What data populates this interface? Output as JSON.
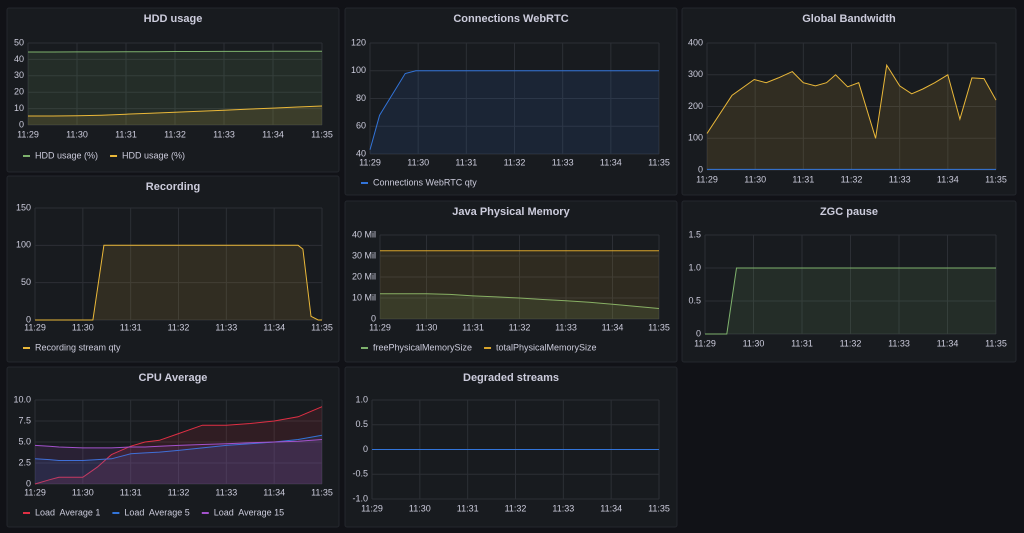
{
  "chart_data": [
    {
      "type": "line",
      "title": "HDD usage",
      "legend": "bottom-left",
      "x": [
        689,
        689.5,
        690,
        690.5,
        691,
        691.5,
        692,
        692.5,
        693,
        693.5,
        694,
        694.5,
        695
      ],
      "xlim": [
        689,
        695
      ],
      "xticks": [
        {
          "value": 689,
          "label": "11:29"
        },
        {
          "value": 690,
          "label": "11:30"
        },
        {
          "value": 691,
          "label": "11:31"
        },
        {
          "value": 692,
          "label": "11:32"
        },
        {
          "value": 693,
          "label": "11:33"
        },
        {
          "value": 694,
          "label": "11:34"
        },
        {
          "value": 695,
          "label": "11:35"
        }
      ],
      "ylim": [
        0,
        50
      ],
      "yticks": [
        0,
        10,
        20,
        30,
        40,
        50
      ],
      "grid": true,
      "series": [
        {
          "name": "HDD usage (%)",
          "color": "#7eb26d",
          "values": [
            44.5,
            44.5,
            44.6,
            44.6,
            44.7,
            44.7,
            44.8,
            44.8,
            44.9,
            44.9,
            45,
            45,
            45
          ]
        },
        {
          "name": "HDD usage (%)",
          "color": "#eab839",
          "values": [
            5.5,
            5.5,
            5.6,
            6,
            6.6,
            7.2,
            7.8,
            8.4,
            9,
            9.7,
            10.3,
            11,
            11.6
          ]
        }
      ]
    },
    {
      "type": "line",
      "title": "Connections WebRTC",
      "legend": "bottom-left",
      "x": [
        689,
        689.2,
        689.73,
        689.95,
        690.5,
        691,
        691.5,
        692,
        692.5,
        693,
        693.5,
        694,
        694.5,
        695
      ],
      "xlim": [
        689,
        695
      ],
      "xticks": [
        {
          "value": 689,
          "label": "11:29"
        },
        {
          "value": 690,
          "label": "11:30"
        },
        {
          "value": 691,
          "label": "11:31"
        },
        {
          "value": 692,
          "label": "11:32"
        },
        {
          "value": 693,
          "label": "11:33"
        },
        {
          "value": 694,
          "label": "11:34"
        },
        {
          "value": 695,
          "label": "11:35"
        }
      ],
      "ylim": [
        40,
        120
      ],
      "yticks": [
        40,
        60,
        80,
        100,
        120
      ],
      "grid": true,
      "series": [
        {
          "name": "Connections WebRTC qty",
          "color": "#3274d9",
          "values": [
            43,
            68,
            98,
            100,
            100,
            100,
            100,
            100,
            100,
            100,
            100,
            100,
            100,
            100
          ]
        }
      ]
    },
    {
      "type": "line",
      "title": "Global Bandwidth",
      "x": [
        689,
        689.52,
        689.98,
        690.23,
        690.48,
        690.77,
        691,
        691.25,
        691.48,
        691.67,
        691.92,
        692.15,
        692.5,
        692.73,
        693,
        693.25,
        693.48,
        693.73,
        694,
        694.25,
        694.5,
        694.75,
        695
      ],
      "xlim": [
        689,
        695
      ],
      "xticks": [
        {
          "value": 689,
          "label": "11:29"
        },
        {
          "value": 690,
          "label": "11:30"
        },
        {
          "value": 691,
          "label": "11:31"
        },
        {
          "value": 692,
          "label": "11:32"
        },
        {
          "value": 693,
          "label": "11:33"
        },
        {
          "value": 694,
          "label": "11:34"
        },
        {
          "value": 695,
          "label": "11:35"
        }
      ],
      "ylim": [
        0,
        400
      ],
      "yticks": [
        0,
        100,
        200,
        300,
        400
      ],
      "grid": true,
      "series": [
        {
          "color": "#eab839",
          "values": [
            115,
            235,
            285,
            275,
            290,
            310,
            275,
            265,
            275,
            300,
            262,
            275,
            100,
            330,
            265,
            240,
            255,
            275,
            300,
            160,
            290,
            288,
            220
          ]
        },
        {
          "color": "#3274d9",
          "values": [
            2,
            2,
            2,
            2,
            2,
            2,
            2,
            2,
            2,
            2,
            2,
            2,
            2,
            2,
            2,
            2,
            2,
            2,
            2,
            2,
            2,
            2,
            2
          ]
        }
      ]
    },
    {
      "type": "line",
      "title": "Recording",
      "legend": "bottom-left",
      "x": [
        689,
        690.21,
        690.44,
        694.5,
        694.6,
        694.77,
        694.92,
        695
      ],
      "xlim": [
        689,
        695
      ],
      "xticks": [
        {
          "value": 689,
          "label": "11:29"
        },
        {
          "value": 690,
          "label": "11:30"
        },
        {
          "value": 691,
          "label": "11:31"
        },
        {
          "value": 692,
          "label": "11:32"
        },
        {
          "value": 693,
          "label": "11:33"
        },
        {
          "value": 694,
          "label": "11:34"
        },
        {
          "value": 695,
          "label": "11:35"
        }
      ],
      "ylim": [
        0,
        150
      ],
      "yticks": [
        0,
        50,
        100,
        150
      ],
      "grid": true,
      "series": [
        {
          "name": "Recording stream qty",
          "color": "#eab839",
          "values": [
            0,
            0,
            100,
            100,
            95,
            5,
            0,
            0
          ]
        }
      ]
    },
    {
      "type": "line",
      "title": "Java Physical Memory",
      "legend": "bottom-left",
      "x": [
        689,
        689.5,
        690,
        690.5,
        691,
        691.5,
        692,
        692.5,
        693,
        693.5,
        694,
        694.5,
        695
      ],
      "xlim": [
        689,
        695
      ],
      "xticks": [
        {
          "value": 689,
          "label": "11:29"
        },
        {
          "value": 690,
          "label": "11:30"
        },
        {
          "value": 691,
          "label": "11:31"
        },
        {
          "value": 692,
          "label": "11:32"
        },
        {
          "value": 693,
          "label": "11:33"
        },
        {
          "value": 694,
          "label": "11:34"
        },
        {
          "value": 695,
          "label": "11:35"
        }
      ],
      "ylim": [
        0,
        40000000
      ],
      "yticks": [
        0,
        {
          "value": 10000000,
          "label": "10 Mil"
        },
        {
          "value": 20000000,
          "label": "20 Mil"
        },
        {
          "value": 30000000,
          "label": "30 Mil"
        },
        {
          "value": 40000000,
          "label": "40 Mil"
        }
      ],
      "grid": true,
      "series": [
        {
          "name": "freePhysicalMemorySize",
          "color": "#7eb26d",
          "values": [
            12000000,
            12000000,
            12000000,
            11700000,
            11000000,
            10500000,
            10000000,
            9300000,
            8700000,
            8000000,
            7000000,
            6000000,
            5000000
          ]
        },
        {
          "name": "totalPhysicalMemorySize",
          "color": "#d9a52b",
          "values": [
            32500000,
            32500000,
            32500000,
            32500000,
            32500000,
            32500000,
            32500000,
            32500000,
            32500000,
            32500000,
            32500000,
            32500000,
            32500000
          ]
        }
      ]
    },
    {
      "type": "line",
      "title": "ZGC pause",
      "x": [
        689,
        689.45,
        689.65,
        695
      ],
      "xlim": [
        689,
        695
      ],
      "xticks": [
        {
          "value": 689,
          "label": "11:29"
        },
        {
          "value": 690,
          "label": "11:30"
        },
        {
          "value": 691,
          "label": "11:31"
        },
        {
          "value": 692,
          "label": "11:32"
        },
        {
          "value": 693,
          "label": "11:33"
        },
        {
          "value": 694,
          "label": "11:34"
        },
        {
          "value": 695,
          "label": "11:35"
        }
      ],
      "ylim": [
        0,
        1.5
      ],
      "yticks": [
        0,
        0.5,
        {
          "value": 1,
          "label": "1.0"
        },
        {
          "value": 1.5,
          "label": "1.5"
        }
      ],
      "grid": true,
      "series": [
        {
          "color": "#7eb26d",
          "values": [
            0,
            0,
            1,
            1
          ]
        }
      ]
    },
    {
      "type": "line",
      "title": "CPU Average",
      "legend": "bottom-left",
      "x": [
        689,
        689.3,
        689.5,
        690,
        690.3,
        690.6,
        691,
        691.3,
        691.6,
        692,
        692.5,
        693,
        693.5,
        694,
        694.5,
        695
      ],
      "xlim": [
        689,
        695
      ],
      "xticks": [
        {
          "value": 689,
          "label": "11:29"
        },
        {
          "value": 690,
          "label": "11:30"
        },
        {
          "value": 691,
          "label": "11:31"
        },
        {
          "value": 692,
          "label": "11:32"
        },
        {
          "value": 693,
          "label": "11:33"
        },
        {
          "value": 694,
          "label": "11:34"
        },
        {
          "value": 695,
          "label": "11:35"
        }
      ],
      "ylim": [
        0,
        10
      ],
      "yticks": [
        0,
        2.5,
        {
          "value": 5,
          "label": "5.0"
        },
        7.5,
        {
          "value": 10,
          "label": "10.0"
        }
      ],
      "grid": true,
      "series": [
        {
          "name": "Load  Average 1",
          "color": "#e02f44",
          "values": [
            0,
            0.5,
            0.8,
            0.8,
            2,
            3.5,
            4.5,
            5,
            5.2,
            6,
            7,
            7,
            7.2,
            7.5,
            8,
            9.2
          ]
        },
        {
          "name": "Load  Average 5",
          "color": "#3274d9",
          "values": [
            3,
            2.9,
            2.8,
            2.8,
            2.9,
            3,
            3.6,
            3.7,
            3.8,
            4,
            4.3,
            4.6,
            4.8,
            5,
            5.3,
            5.8
          ]
        },
        {
          "name": "Load  Average 15",
          "color": "#a352cc",
          "values": [
            4.6,
            4.5,
            4.4,
            4.3,
            4.3,
            4.3,
            4.4,
            4.4,
            4.5,
            4.6,
            4.7,
            4.8,
            4.9,
            5,
            5.1,
            5.3
          ]
        }
      ]
    },
    {
      "type": "line",
      "title": "Degraded streams",
      "x": [
        689,
        695
      ],
      "xlim": [
        689,
        695
      ],
      "xticks": [
        {
          "value": 689,
          "label": "11:29"
        },
        {
          "value": 690,
          "label": "11:30"
        },
        {
          "value": 691,
          "label": "11:31"
        },
        {
          "value": 692,
          "label": "11:32"
        },
        {
          "value": 693,
          "label": "11:33"
        },
        {
          "value": 694,
          "label": "11:34"
        },
        {
          "value": 695,
          "label": "11:35"
        }
      ],
      "ylim": [
        -1,
        1
      ],
      "yticks": [
        {
          "value": -1,
          "label": "-1.0"
        },
        -0.5,
        0,
        0.5,
        {
          "value": 1,
          "label": "1.0"
        }
      ],
      "grid": true,
      "series": [
        {
          "color": "#3274d9",
          "values": [
            0,
            0
          ]
        }
      ]
    }
  ]
}
